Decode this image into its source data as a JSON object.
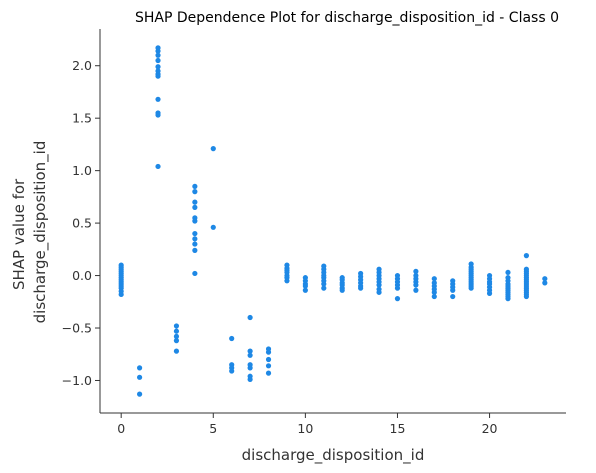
{
  "chart_data": {
    "type": "scatter",
    "title": "SHAP Dependence Plot for discharge_disposition_id - Class 0",
    "xlabel": "discharge_disposition_id",
    "ylabel_lines": [
      "SHAP value for",
      "discharge_disposition_id"
    ],
    "xlim": [
      -1.15,
      24.15
    ],
    "ylim": [
      -1.31,
      2.35
    ],
    "x_ticks": [
      0,
      5,
      10,
      15,
      20
    ],
    "y_ticks": [
      -1.0,
      -0.5,
      0.0,
      0.5,
      1.0,
      1.5,
      2.0
    ],
    "y_tick_labels": [
      "−1.0",
      "−0.5",
      "0.0",
      "0.5",
      "1.0",
      "1.5",
      "2.0"
    ],
    "point_color": "#1e88e5",
    "grid": false,
    "series": [
      {
        "points": [
          [
            0,
            0.1
          ],
          [
            0,
            0.08
          ],
          [
            0,
            0.06
          ],
          [
            0,
            0.04
          ],
          [
            0,
            0.02
          ],
          [
            0,
            0.0
          ],
          [
            0,
            -0.02
          ],
          [
            0,
            -0.04
          ],
          [
            0,
            -0.06
          ],
          [
            0,
            -0.08
          ],
          [
            0,
            -0.1
          ],
          [
            0,
            -0.12
          ],
          [
            0,
            -0.15
          ],
          [
            0,
            -0.18
          ],
          [
            1,
            -0.88
          ],
          [
            1,
            -0.97
          ],
          [
            1,
            -1.13
          ],
          [
            2,
            2.17
          ],
          [
            2,
            2.14
          ],
          [
            2,
            2.1
          ],
          [
            2,
            2.05
          ],
          [
            2,
            1.99
          ],
          [
            2,
            1.95
          ],
          [
            2,
            1.92
          ],
          [
            2,
            1.9
          ],
          [
            2,
            1.68
          ],
          [
            2,
            1.55
          ],
          [
            2,
            1.53
          ],
          [
            2,
            1.04
          ],
          [
            3,
            -0.48
          ],
          [
            3,
            -0.53
          ],
          [
            3,
            -0.58
          ],
          [
            3,
            -0.62
          ],
          [
            3,
            -0.72
          ],
          [
            4,
            0.85
          ],
          [
            4,
            0.8
          ],
          [
            4,
            0.7
          ],
          [
            4,
            0.65
          ],
          [
            4,
            0.55
          ],
          [
            4,
            0.52
          ],
          [
            4,
            0.4
          ],
          [
            4,
            0.35
          ],
          [
            4,
            0.3
          ],
          [
            4,
            0.24
          ],
          [
            4,
            0.02
          ],
          [
            5,
            1.21
          ],
          [
            5,
            0.46
          ],
          [
            6,
            -0.6
          ],
          [
            6,
            -0.85
          ],
          [
            6,
            -0.88
          ],
          [
            6,
            -0.91
          ],
          [
            7,
            -0.4
          ],
          [
            7,
            -0.72
          ],
          [
            7,
            -0.76
          ],
          [
            7,
            -0.85
          ],
          [
            7,
            -0.88
          ],
          [
            7,
            -0.96
          ],
          [
            7,
            -0.99
          ],
          [
            8,
            -0.7
          ],
          [
            8,
            -0.73
          ],
          [
            8,
            -0.8
          ],
          [
            8,
            -0.86
          ],
          [
            8,
            -0.93
          ],
          [
            9,
            0.1
          ],
          [
            9,
            0.07
          ],
          [
            9,
            0.05
          ],
          [
            9,
            0.03
          ],
          [
            9,
            0.0
          ],
          [
            9,
            -0.02
          ],
          [
            9,
            -0.05
          ],
          [
            10,
            -0.02
          ],
          [
            10,
            -0.05
          ],
          [
            10,
            -0.08
          ],
          [
            10,
            -0.1
          ],
          [
            10,
            -0.14
          ],
          [
            11,
            0.09
          ],
          [
            11,
            0.06
          ],
          [
            11,
            0.03
          ],
          [
            11,
            0.0
          ],
          [
            11,
            -0.02
          ],
          [
            11,
            -0.05
          ],
          [
            11,
            -0.08
          ],
          [
            11,
            -0.12
          ],
          [
            12,
            -0.02
          ],
          [
            12,
            -0.04
          ],
          [
            12,
            -0.07
          ],
          [
            12,
            -0.09
          ],
          [
            12,
            -0.12
          ],
          [
            12,
            -0.14
          ],
          [
            13,
            0.02
          ],
          [
            13,
            -0.01
          ],
          [
            13,
            -0.04
          ],
          [
            13,
            -0.07
          ],
          [
            13,
            -0.1
          ],
          [
            13,
            -0.12
          ],
          [
            14,
            0.06
          ],
          [
            14,
            0.03
          ],
          [
            14,
            0.0
          ],
          [
            14,
            -0.03
          ],
          [
            14,
            -0.06
          ],
          [
            14,
            -0.09
          ],
          [
            14,
            -0.13
          ],
          [
            14,
            -0.16
          ],
          [
            15,
            0.0
          ],
          [
            15,
            -0.03
          ],
          [
            15,
            -0.06
          ],
          [
            15,
            -0.09
          ],
          [
            15,
            -0.12
          ],
          [
            15,
            -0.22
          ],
          [
            16,
            0.04
          ],
          [
            16,
            0.0
          ],
          [
            16,
            -0.03
          ],
          [
            16,
            -0.06
          ],
          [
            16,
            -0.09
          ],
          [
            16,
            -0.14
          ],
          [
            17,
            -0.03
          ],
          [
            17,
            -0.07
          ],
          [
            17,
            -0.1
          ],
          [
            17,
            -0.13
          ],
          [
            17,
            -0.16
          ],
          [
            17,
            -0.2
          ],
          [
            18,
            -0.05
          ],
          [
            18,
            -0.08
          ],
          [
            18,
            -0.11
          ],
          [
            18,
            -0.14
          ],
          [
            18,
            -0.2
          ],
          [
            19,
            0.11
          ],
          [
            19,
            0.08
          ],
          [
            19,
            0.06
          ],
          [
            19,
            0.04
          ],
          [
            19,
            0.02
          ],
          [
            19,
            0.0
          ],
          [
            19,
            -0.02
          ],
          [
            19,
            -0.04
          ],
          [
            19,
            -0.06
          ],
          [
            19,
            -0.08
          ],
          [
            19,
            -0.1
          ],
          [
            19,
            -0.12
          ],
          [
            20,
            0.0
          ],
          [
            20,
            -0.03
          ],
          [
            20,
            -0.06
          ],
          [
            20,
            -0.08
          ],
          [
            20,
            -0.11
          ],
          [
            20,
            -0.14
          ],
          [
            20,
            -0.17
          ],
          [
            21,
            0.03
          ],
          [
            21,
            -0.02
          ],
          [
            21,
            -0.05
          ],
          [
            21,
            -0.08
          ],
          [
            21,
            -0.1
          ],
          [
            21,
            -0.12
          ],
          [
            21,
            -0.14
          ],
          [
            21,
            -0.16
          ],
          [
            21,
            -0.18
          ],
          [
            21,
            -0.2
          ],
          [
            21,
            -0.22
          ],
          [
            22,
            0.19
          ],
          [
            22,
            0.06
          ],
          [
            22,
            0.04
          ],
          [
            22,
            0.02
          ],
          [
            22,
            0.0
          ],
          [
            22,
            -0.02
          ],
          [
            22,
            -0.04
          ],
          [
            22,
            -0.06
          ],
          [
            22,
            -0.08
          ],
          [
            22,
            -0.1
          ],
          [
            22,
            -0.12
          ],
          [
            22,
            -0.14
          ],
          [
            22,
            -0.16
          ],
          [
            22,
            -0.18
          ],
          [
            22,
            -0.2
          ],
          [
            23,
            -0.03
          ],
          [
            23,
            -0.07
          ]
        ]
      }
    ]
  }
}
